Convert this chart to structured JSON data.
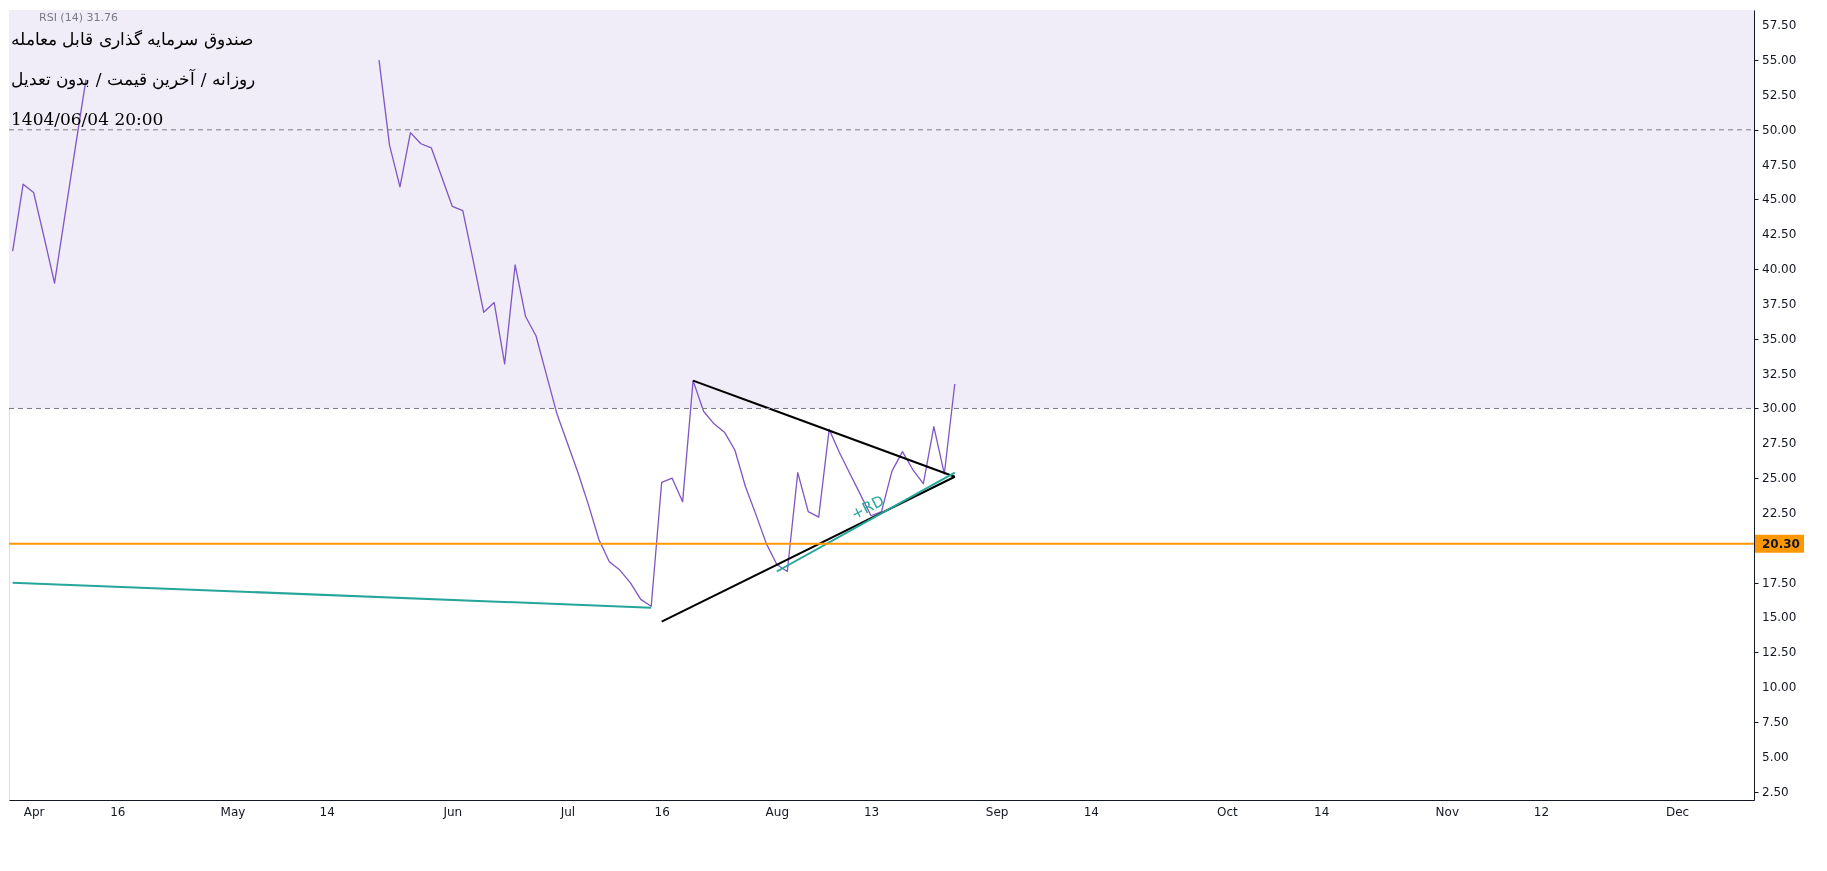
{
  "chart_data": {
    "type": "line",
    "title": "صندوق سرمایه گذاری قابل معامله",
    "subtitle": "روزانه / آخرین قیمت / بدون تعدیل",
    "annotations": [
      "1404/06/04 20:00",
      "RSI (14)  31.76",
      {
        "text": "+RD",
        "y": 22.9
      }
    ],
    "categories": [
      null,
      null,
      "Apr",
      null,
      null,
      null,
      null,
      null,
      null,
      null,
      "16",
      null,
      null,
      null,
      null,
      null,
      null,
      null,
      null,
      null,
      null,
      "May",
      null,
      null,
      null,
      null,
      null,
      null,
      null,
      null,
      "14",
      null,
      null,
      null,
      null,
      null,
      null,
      null,
      null,
      null,
      null,
      null,
      "Jun",
      null,
      null,
      null,
      null,
      null,
      null,
      null,
      null,
      null,
      null,
      "Jul",
      null,
      null,
      null,
      null,
      null,
      null,
      null,
      null,
      "16",
      null,
      null,
      null,
      null,
      null,
      null,
      null,
      null,
      null,
      null,
      "Aug",
      null,
      null,
      null,
      null,
      null,
      null,
      null,
      null,
      "13",
      null,
      null,
      null,
      null,
      null,
      null,
      null,
      null,
      null,
      null,
      null,
      "Sep",
      null,
      null,
      null,
      null,
      null,
      null,
      null,
      null,
      "14",
      null,
      null,
      null,
      null,
      null,
      null,
      null,
      null,
      null,
      null,
      null,
      null,
      "Oct",
      null,
      null,
      null,
      null,
      null,
      null,
      null,
      null,
      "14",
      null,
      null,
      null,
      null,
      null,
      null,
      null,
      null,
      null,
      null,
      null,
      "Nov",
      null,
      null,
      null,
      null,
      null,
      null,
      null,
      null,
      "12",
      null,
      null,
      null,
      null,
      null,
      null,
      null,
      null,
      null,
      null,
      null,
      null,
      "Dec",
      null,
      null,
      null,
      null,
      null,
      null,
      null
    ],
    "ylim": [
      1.9,
      58.6
    ],
    "yticks": [
      {
        "value": 2.5,
        "label": "2.50"
      },
      {
        "value": 5,
        "label": "5.00"
      },
      {
        "value": 7.5,
        "label": "7.50"
      },
      {
        "value": 10,
        "label": "10.00"
      },
      {
        "value": 12.5,
        "label": "12.50"
      },
      {
        "value": 15,
        "label": "15.00"
      },
      {
        "value": 17.5,
        "label": "17.50"
      },
      {
        "value": 22.5,
        "label": "22.50"
      },
      {
        "value": 25,
        "label": "25.00"
      },
      {
        "value": 27.5,
        "label": "27.50"
      },
      {
        "value": 30,
        "label": "30.00"
      },
      {
        "value": 32.5,
        "label": "32.50"
      },
      {
        "value": 35,
        "label": "35.00"
      },
      {
        "value": 37.5,
        "label": "37.50"
      },
      {
        "value": 40,
        "label": "40.00"
      },
      {
        "value": 42.5,
        "label": "42.50"
      },
      {
        "value": 45,
        "label": "45.00"
      },
      {
        "value": 47.5,
        "label": "47.50"
      },
      {
        "value": 50,
        "label": "50.00"
      },
      {
        "value": 52.5,
        "label": "52.50"
      },
      {
        "value": 55,
        "label": "55.00"
      },
      {
        "value": 57.5,
        "label": "57.50"
      }
    ],
    "bands": [
      {
        "axis": "y",
        "from": 30,
        "to": 58.6,
        "color": "#f0ecf8"
      }
    ],
    "ref_lines": [
      {
        "axis": "y",
        "value": 50,
        "color": "#787b86",
        "line_style": "dashed"
      },
      {
        "axis": "y",
        "value": 30,
        "color": "#787b86",
        "line_style": "dashed"
      },
      {
        "axis": "y",
        "value": 20.3,
        "label": "20.30",
        "color": "#ff9800",
        "line_style": "solid"
      }
    ],
    "series": [
      {
        "color": "#7e57c2",
        "values": [
          41.3,
          46.1,
          45.5,
          42.3,
          39.0,
          43.9,
          48.8,
          53.6,
          null,
          null,
          null,
          null,
          null,
          null,
          null,
          null,
          null,
          null,
          null,
          null,
          null,
          null,
          null,
          null,
          null,
          null,
          null,
          null,
          null,
          null,
          null,
          null,
          null,
          null,
          null,
          55.0,
          48.9,
          45.9,
          49.8,
          49.0,
          48.7,
          46.6,
          44.5,
          44.2,
          40.6,
          36.9,
          37.6,
          33.2,
          40.3,
          36.6,
          35.2,
          32.4,
          29.6,
          27.5,
          25.4,
          23.1,
          20.6,
          19.0,
          18.4,
          17.5,
          16.3,
          15.8,
          24.7,
          25.0,
          23.3,
          32.0,
          29.8,
          28.9,
          28.3,
          27.0,
          24.4,
          22.4,
          20.3,
          18.8,
          18.3,
          25.4,
          22.6,
          22.2,
          28.5,
          26.8,
          25.3,
          23.8,
          22.3,
          22.6,
          25.5,
          26.9,
          25.6,
          24.6,
          28.7,
          25.3,
          31.76,
          null,
          null,
          null,
          null,
          null,
          null,
          null,
          null,
          null,
          null,
          null,
          null,
          null,
          null,
          null,
          null,
          null,
          null,
          null,
          null,
          null,
          null,
          null,
          null,
          null,
          null,
          null,
          null,
          null,
          null,
          null,
          null,
          null,
          null,
          null,
          null,
          null,
          null,
          null,
          null,
          null,
          null,
          null,
          null,
          null,
          null,
          null,
          null,
          null,
          null,
          null,
          null,
          null,
          null,
          null,
          null,
          null,
          null,
          null,
          null,
          null,
          null,
          null,
          null,
          null,
          null,
          null,
          null,
          null,
          null,
          null,
          null,
          null,
          null,
          null,
          null
        ]
      },
      {
        "color": "#000000",
        "values": [
          null,
          null,
          null,
          null,
          null,
          null,
          null,
          null,
          null,
          null,
          null,
          null,
          null,
          null,
          null,
          null,
          null,
          null,
          null,
          null,
          null,
          null,
          null,
          null,
          null,
          null,
          null,
          null,
          null,
          null,
          null,
          null,
          null,
          null,
          null,
          null,
          null,
          null,
          null,
          null,
          null,
          null,
          null,
          null,
          null,
          null,
          null,
          null,
          null,
          null,
          null,
          null,
          null,
          null,
          null,
          null,
          null,
          null,
          null,
          null,
          null,
          null,
          null,
          null,
          null,
          32.0,
          null,
          null,
          null,
          null,
          null,
          null,
          null,
          null,
          null,
          null,
          null,
          null,
          null,
          null,
          null,
          null,
          null,
          null,
          null,
          null,
          null,
          null,
          null,
          null,
          25.1,
          null,
          null,
          null,
          null,
          null,
          null,
          null,
          null,
          null,
          null,
          null,
          null,
          null,
          null,
          null,
          null,
          null,
          null,
          null,
          null,
          null,
          null,
          null,
          null,
          null,
          null,
          null,
          null,
          null,
          null,
          null,
          null,
          null,
          null,
          null,
          null,
          null,
          null,
          null,
          null,
          null,
          null,
          null,
          null,
          null,
          null,
          null,
          null,
          null,
          null,
          null,
          null,
          null,
          null,
          null,
          null,
          null,
          null,
          null,
          null,
          null,
          null,
          null,
          null,
          null,
          null,
          null,
          null,
          null,
          null,
          null,
          null,
          null,
          null,
          null,
          null
        ]
      },
      {
        "color": "#000000",
        "values": [
          null,
          null,
          null,
          null,
          null,
          null,
          null,
          null,
          null,
          null,
          null,
          null,
          null,
          null,
          null,
          null,
          null,
          null,
          null,
          null,
          null,
          null,
          null,
          null,
          null,
          null,
          null,
          null,
          null,
          null,
          null,
          null,
          null,
          null,
          null,
          null,
          null,
          null,
          null,
          null,
          null,
          null,
          null,
          null,
          null,
          null,
          null,
          null,
          null,
          null,
          null,
          null,
          null,
          null,
          null,
          null,
          null,
          null,
          null,
          null,
          null,
          null,
          14.7,
          null,
          null,
          null,
          null,
          null,
          null,
          null,
          null,
          null,
          null,
          null,
          null,
          null,
          null,
          null,
          null,
          null,
          null,
          null,
          null,
          null,
          null,
          null,
          null,
          null,
          null,
          null,
          25.1,
          null,
          null,
          null,
          null,
          null,
          null,
          null,
          null,
          null,
          null,
          null,
          null,
          null,
          null,
          null,
          null,
          null,
          null,
          null,
          null,
          null,
          null,
          null,
          null,
          null,
          null,
          null,
          null,
          null,
          null,
          null,
          null,
          null,
          null,
          null,
          null,
          null,
          null,
          null,
          null,
          null,
          null,
          null,
          null,
          null,
          null,
          null,
          null,
          null,
          null,
          null,
          null,
          null,
          null,
          null,
          null,
          null,
          null,
          null,
          null,
          null,
          null,
          null,
          null,
          null,
          null,
          null,
          null,
          null,
          null,
          null,
          null,
          null,
          null,
          null,
          null
        ]
      },
      {
        "color": "#26a69a",
        "values": [
          17.5,
          null,
          null,
          null,
          null,
          null,
          null,
          null,
          null,
          null,
          null,
          null,
          null,
          null,
          null,
          null,
          null,
          null,
          null,
          null,
          null,
          null,
          null,
          null,
          null,
          null,
          null,
          null,
          null,
          null,
          null,
          null,
          null,
          null,
          null,
          null,
          null,
          null,
          null,
          null,
          null,
          null,
          null,
          null,
          null,
          null,
          null,
          null,
          null,
          null,
          null,
          null,
          null,
          null,
          null,
          null,
          null,
          null,
          null,
          null,
          null,
          15.7,
          null,
          null,
          null,
          null,
          null,
          null,
          null,
          null,
          null,
          null,
          null,
          null,
          null,
          null,
          null,
          null,
          null,
          null,
          null,
          null,
          null,
          null,
          null,
          null,
          null,
          null,
          null,
          null,
          null,
          null,
          null,
          null,
          null,
          null,
          null,
          null,
          null,
          null,
          null,
          null,
          null,
          null,
          null,
          null,
          null,
          null,
          null,
          null,
          null,
          null,
          null,
          null,
          null,
          null,
          null,
          null,
          null,
          null,
          null,
          null,
          null,
          null,
          null,
          null,
          null,
          null,
          null,
          null,
          null,
          null,
          null,
          null,
          null,
          null,
          null,
          null,
          null,
          null,
          null,
          null,
          null,
          null,
          null,
          null,
          null,
          null,
          null,
          null,
          null,
          null,
          null,
          null,
          null,
          null,
          null,
          null,
          null,
          null,
          null,
          null,
          null,
          null,
          null,
          null,
          null
        ]
      },
      {
        "color": "#26a69a",
        "values": [
          null,
          null,
          null,
          null,
          null,
          null,
          null,
          null,
          null,
          null,
          null,
          null,
          null,
          null,
          null,
          null,
          null,
          null,
          null,
          null,
          null,
          null,
          null,
          null,
          null,
          null,
          null,
          null,
          null,
          null,
          null,
          null,
          null,
          null,
          null,
          null,
          null,
          null,
          null,
          null,
          null,
          null,
          null,
          null,
          null,
          null,
          null,
          null,
          null,
          null,
          null,
          null,
          null,
          null,
          null,
          null,
          null,
          null,
          null,
          null,
          null,
          null,
          null,
          null,
          null,
          null,
          null,
          null,
          null,
          null,
          null,
          null,
          null,
          18.3,
          null,
          null,
          null,
          null,
          null,
          null,
          null,
          null,
          null,
          null,
          null,
          null,
          null,
          null,
          null,
          null,
          25.4,
          null,
          null,
          null,
          null,
          null,
          null,
          null,
          null,
          null,
          null,
          null,
          null,
          null,
          null,
          null,
          null,
          null,
          null,
          null,
          null,
          null,
          null,
          null,
          null,
          null,
          null,
          null,
          null,
          null,
          null,
          null,
          null,
          null,
          null,
          null,
          null,
          null,
          null,
          null,
          null,
          null,
          null,
          null,
          null,
          null,
          null,
          null,
          null,
          null,
          null,
          null,
          null,
          null,
          null,
          null,
          null,
          null,
          null,
          null,
          null,
          null,
          null,
          null,
          null,
          null,
          null,
          null,
          null,
          null,
          null,
          null,
          null,
          null,
          null,
          null,
          null
        ]
      }
    ],
    "marker": "none",
    "line_style": "solid",
    "grid": false
  }
}
